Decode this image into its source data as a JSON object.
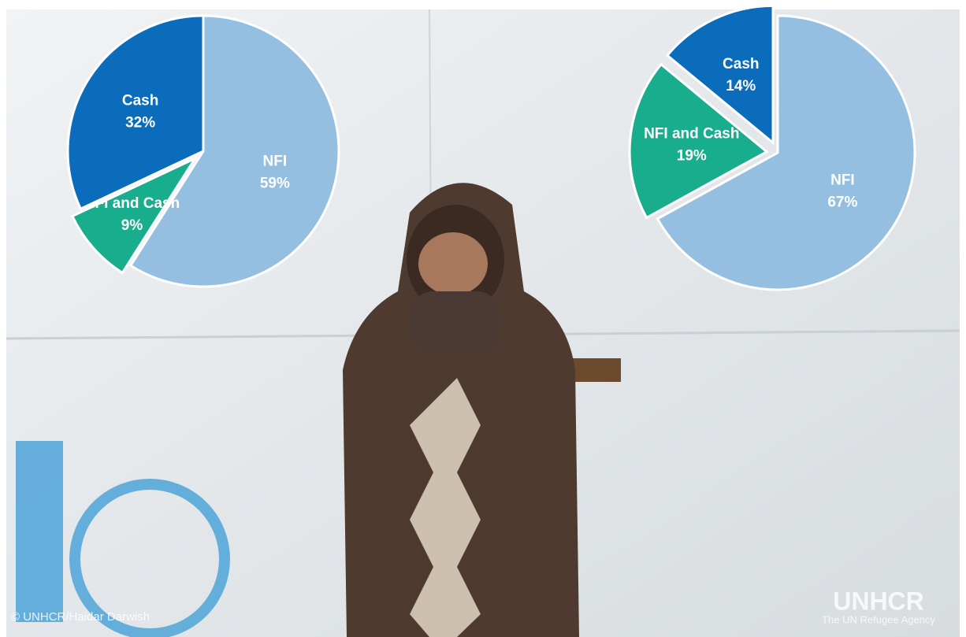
{
  "chart_data": [
    {
      "type": "pie",
      "categories": [
        "NFI",
        "NFI and Cash",
        "Cash"
      ],
      "values": [
        59,
        9,
        32
      ],
      "value_labels": [
        "59%",
        "9%",
        "32%"
      ],
      "colors": [
        "#95bfe0",
        "#17ad8d",
        "#0b6cbc"
      ],
      "explode": [
        false,
        true,
        false
      ]
    },
    {
      "type": "pie",
      "categories": [
        "NFI",
        "NFI and Cash",
        "Cash"
      ],
      "values": [
        67,
        19,
        14
      ],
      "value_labels": [
        "67%",
        "19%",
        "14%"
      ],
      "colors": [
        "#95bfe0",
        "#17ad8d",
        "#0b6cbc"
      ],
      "explode": [
        false,
        true,
        true
      ]
    }
  ],
  "photo_credit": "© UNHCR/Haidar Darwish",
  "logo": {
    "name": "UNHCR",
    "tagline": "The UN Refugee Agency"
  }
}
